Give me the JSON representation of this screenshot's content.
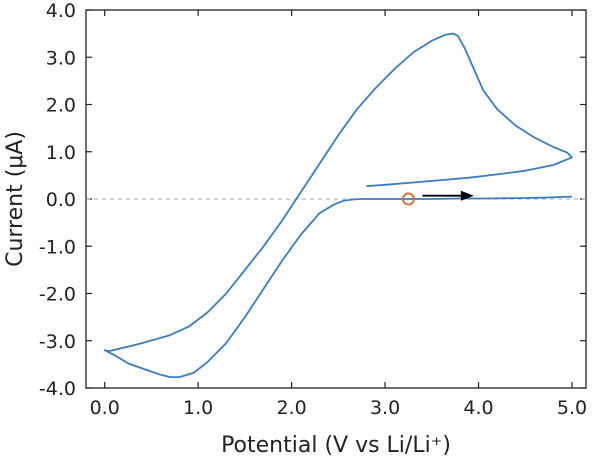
{
  "chart_data": {
    "type": "line",
    "title": "",
    "xlabel": "Potential (V vs  Li/Li⁺)",
    "ylabel": "Current (μA)",
    "xlim": [
      -0.2,
      5.15
    ],
    "ylim": [
      -4.0,
      4.0
    ],
    "x_ticks": [
      0.0,
      1.0,
      2.0,
      3.0,
      4.0,
      5.0
    ],
    "x_tick_labels": [
      "0.0",
      "1.0",
      "2.0",
      "3.0",
      "4.0",
      "5.0"
    ],
    "y_ticks": [
      4.0,
      3.0,
      2.0,
      1.0,
      0.0,
      -1.0,
      -2.0,
      -3.0,
      -4.0
    ],
    "y_tick_labels": [
      "4.0",
      "3.0",
      "2.0",
      "1.0",
      "0.0",
      "-1.0",
      "-2.0",
      "-3.0",
      "-4.0"
    ],
    "grid": false,
    "zero_line": {
      "y": 0.0,
      "style": "dashed",
      "color": "#aaaaaa"
    },
    "series": [
      {
        "color": "#3a7cc2",
        "x": [
          2.8,
          3.0,
          3.3,
          3.6,
          3.9,
          4.2,
          4.5,
          4.8,
          5.0,
          4.95,
          4.8,
          4.6,
          4.4,
          4.2,
          4.05,
          3.95,
          3.85,
          3.78,
          3.73,
          3.65,
          3.5,
          3.3,
          3.1,
          2.9,
          2.7,
          2.5,
          2.3,
          2.1,
          1.9,
          1.7,
          1.5,
          1.3,
          1.1,
          0.9,
          0.7,
          0.4,
          0.2,
          0.05,
          0.0,
          0.1,
          0.25,
          0.45,
          0.6,
          0.7,
          0.8,
          0.95,
          1.1,
          1.3,
          1.5,
          1.7,
          1.9,
          2.1,
          2.3,
          2.45,
          2.55,
          2.65,
          2.75,
          2.85,
          3.0,
          3.25,
          3.5,
          3.8,
          4.1,
          4.4,
          4.7,
          5.0
        ],
        "y": [
          0.27,
          0.3,
          0.35,
          0.4,
          0.45,
          0.52,
          0.6,
          0.72,
          0.88,
          0.98,
          1.1,
          1.3,
          1.55,
          1.9,
          2.3,
          2.75,
          3.2,
          3.45,
          3.5,
          3.48,
          3.35,
          3.1,
          2.75,
          2.35,
          1.9,
          1.35,
          0.75,
          0.15,
          -0.45,
          -1.0,
          -1.5,
          -2.0,
          -2.4,
          -2.7,
          -2.88,
          -3.05,
          -3.15,
          -3.22,
          -3.2,
          -3.3,
          -3.48,
          -3.62,
          -3.72,
          -3.77,
          -3.77,
          -3.68,
          -3.45,
          -3.05,
          -2.5,
          -1.9,
          -1.3,
          -0.75,
          -0.3,
          -0.12,
          -0.04,
          -0.01,
          0.0,
          0.0,
          0.0,
          0.0,
          0.0,
          0.01,
          0.01,
          0.02,
          0.03,
          0.05
        ]
      }
    ],
    "annotations": [
      {
        "kind": "circle-marker",
        "x": 3.25,
        "y": 0.0,
        "color": "#e0642a"
      },
      {
        "kind": "arrow",
        "x_start": 3.4,
        "x_end": 3.95,
        "y": 0.07,
        "color": "#000000"
      }
    ]
  }
}
